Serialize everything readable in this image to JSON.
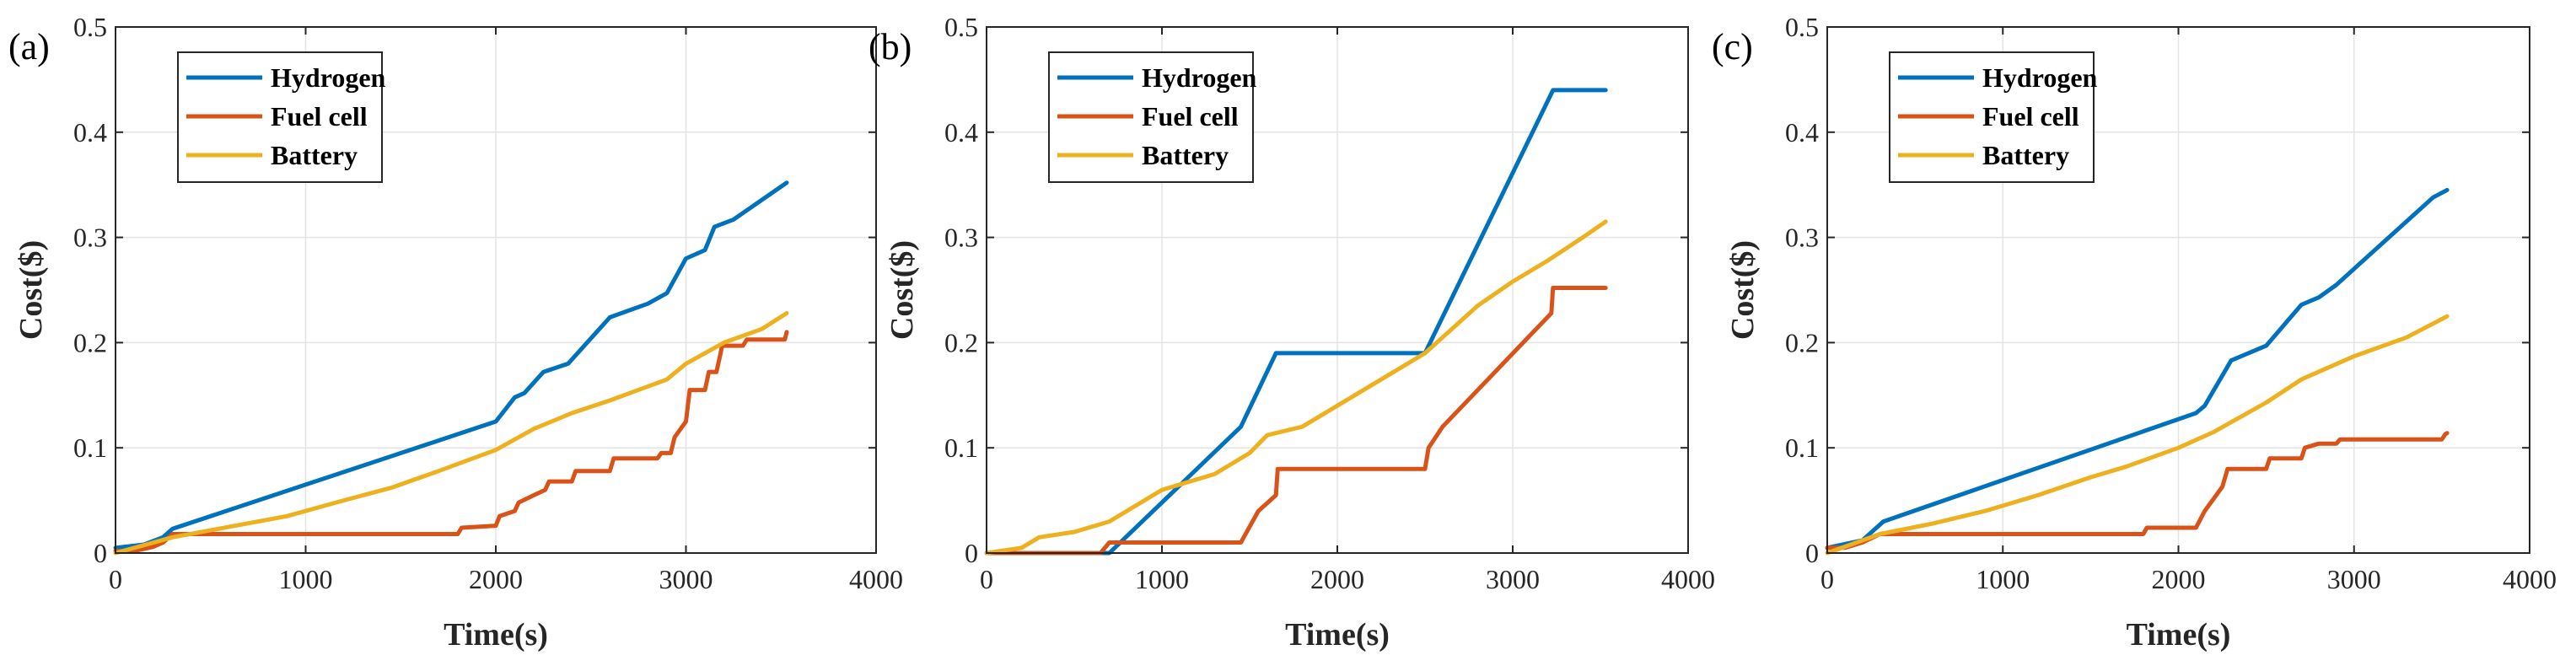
{
  "colors": {
    "hydrogen": "#0072BD",
    "fuel_cell": "#D95319",
    "battery": "#EDB120"
  },
  "chart_data": [
    {
      "type": "line",
      "panel_label": "(a)",
      "xlabel": "Time(s)",
      "ylabel": "Cost($)",
      "xlim": [
        0,
        4000
      ],
      "ylim": [
        0,
        0.5
      ],
      "xticks": [
        0,
        1000,
        2000,
        3000,
        4000
      ],
      "xtick_labels": [
        "0",
        "1000",
        "2000",
        "3000",
        "4000"
      ],
      "yticks": [
        0,
        0.1,
        0.2,
        0.3,
        0.4,
        0.5
      ],
      "ytick_labels": [
        "0",
        "0.1",
        "0.2",
        "0.3",
        "0.4",
        "0.5"
      ],
      "grid": true,
      "legend_position": "top-left",
      "series": [
        {
          "name": "Hydrogen",
          "color_key": "hydrogen",
          "points": [
            [
              0,
              0.005
            ],
            [
              150,
              0.008
            ],
            [
              250,
              0.015
            ],
            [
              300,
              0.023
            ],
            [
              1800,
              0.113
            ],
            [
              2000,
              0.125
            ],
            [
              2100,
              0.148
            ],
            [
              2150,
              0.152
            ],
            [
              2250,
              0.172
            ],
            [
              2380,
              0.18
            ],
            [
              2600,
              0.224
            ],
            [
              2800,
              0.237
            ],
            [
              2900,
              0.247
            ],
            [
              3000,
              0.28
            ],
            [
              3100,
              0.288
            ],
            [
              3150,
              0.31
            ],
            [
              3250,
              0.317
            ],
            [
              3530,
              0.352
            ]
          ]
        },
        {
          "name": "Fuel cell",
          "color_key": "fuel_cell",
          "points": [
            [
              0,
              0.002
            ],
            [
              100,
              0.002
            ],
            [
              200,
              0.006
            ],
            [
              250,
              0.01
            ],
            [
              300,
              0.018
            ],
            [
              1800,
              0.018
            ],
            [
              1820,
              0.024
            ],
            [
              2000,
              0.026
            ],
            [
              2020,
              0.035
            ],
            [
              2100,
              0.04
            ],
            [
              2120,
              0.048
            ],
            [
              2200,
              0.055
            ],
            [
              2260,
              0.06
            ],
            [
              2280,
              0.068
            ],
            [
              2400,
              0.068
            ],
            [
              2420,
              0.078
            ],
            [
              2600,
              0.078
            ],
            [
              2620,
              0.09
            ],
            [
              2850,
              0.09
            ],
            [
              2870,
              0.095
            ],
            [
              2920,
              0.095
            ],
            [
              2940,
              0.11
            ],
            [
              3000,
              0.125
            ],
            [
              3020,
              0.155
            ],
            [
              3100,
              0.155
            ],
            [
              3120,
              0.172
            ],
            [
              3160,
              0.172
            ],
            [
              3180,
              0.188
            ],
            [
              3190,
              0.197
            ],
            [
              3300,
              0.197
            ],
            [
              3320,
              0.203
            ],
            [
              3520,
              0.203
            ],
            [
              3530,
              0.21
            ]
          ]
        },
        {
          "name": "Battery",
          "color_key": "battery",
          "points": [
            [
              0,
              0
            ],
            [
              300,
              0.015
            ],
            [
              600,
              0.025
            ],
            [
              900,
              0.035
            ],
            [
              1200,
              0.05
            ],
            [
              1450,
              0.062
            ],
            [
              1700,
              0.078
            ],
            [
              2000,
              0.098
            ],
            [
              2200,
              0.118
            ],
            [
              2400,
              0.133
            ],
            [
              2600,
              0.145
            ],
            [
              2900,
              0.165
            ],
            [
              3000,
              0.18
            ],
            [
              3200,
              0.2
            ],
            [
              3400,
              0.213
            ],
            [
              3530,
              0.228
            ]
          ]
        }
      ]
    },
    {
      "type": "line",
      "panel_label": "(b)",
      "xlabel": "Time(s)",
      "ylabel": "Cost($)",
      "xlim": [
        0,
        4000
      ],
      "ylim": [
        0,
        0.5
      ],
      "xticks": [
        0,
        1000,
        2000,
        3000,
        4000
      ],
      "xtick_labels": [
        "0",
        "1000",
        "2000",
        "3000",
        "4000"
      ],
      "yticks": [
        0,
        0.1,
        0.2,
        0.3,
        0.4,
        0.5
      ],
      "ytick_labels": [
        "0",
        "0.1",
        "0.2",
        "0.3",
        "0.4",
        "0.5"
      ],
      "grid": true,
      "legend_position": "top-left",
      "series": [
        {
          "name": "Hydrogen",
          "color_key": "hydrogen",
          "points": [
            [
              0,
              0
            ],
            [
              700,
              0
            ],
            [
              1450,
              0.12
            ],
            [
              1650,
              0.19
            ],
            [
              2500,
              0.19
            ],
            [
              3230,
              0.44
            ],
            [
              3530,
              0.44
            ]
          ]
        },
        {
          "name": "Fuel cell",
          "color_key": "fuel_cell",
          "points": [
            [
              0,
              0
            ],
            [
              650,
              0
            ],
            [
              700,
              0.01
            ],
            [
              1450,
              0.01
            ],
            [
              1550,
              0.04
            ],
            [
              1650,
              0.055
            ],
            [
              1660,
              0.08
            ],
            [
              2500,
              0.08
            ],
            [
              2520,
              0.1
            ],
            [
              2600,
              0.12
            ],
            [
              3220,
              0.228
            ],
            [
              3230,
              0.252
            ],
            [
              3530,
              0.252
            ]
          ]
        },
        {
          "name": "Battery",
          "color_key": "battery",
          "points": [
            [
              0,
              0
            ],
            [
              200,
              0.005
            ],
            [
              300,
              0.015
            ],
            [
              500,
              0.02
            ],
            [
              700,
              0.03
            ],
            [
              1000,
              0.06
            ],
            [
              1300,
              0.075
            ],
            [
              1500,
              0.095
            ],
            [
              1600,
              0.112
            ],
            [
              1800,
              0.12
            ],
            [
              2200,
              0.16
            ],
            [
              2500,
              0.19
            ],
            [
              2600,
              0.205
            ],
            [
              2800,
              0.235
            ],
            [
              3000,
              0.258
            ],
            [
              3200,
              0.278
            ],
            [
              3400,
              0.3
            ],
            [
              3530,
              0.315
            ]
          ]
        }
      ]
    },
    {
      "type": "line",
      "panel_label": "(c)",
      "xlabel": "Time(s)",
      "ylabel": "Cost($)",
      "xlim": [
        0,
        4000
      ],
      "ylim": [
        0,
        0.5
      ],
      "xticks": [
        0,
        1000,
        2000,
        3000,
        4000
      ],
      "xtick_labels": [
        "0",
        "1000",
        "2000",
        "3000",
        "4000"
      ],
      "yticks": [
        0,
        0.1,
        0.2,
        0.3,
        0.4,
        0.5
      ],
      "ytick_labels": [
        "0",
        "0.1",
        "0.2",
        "0.3",
        "0.4",
        "0.5"
      ],
      "grid": true,
      "legend_position": "top-left",
      "series": [
        {
          "name": "Hydrogen",
          "color_key": "hydrogen",
          "points": [
            [
              0,
              0.005
            ],
            [
              200,
              0.012
            ],
            [
              320,
              0.03
            ],
            [
              2100,
              0.133
            ],
            [
              2150,
              0.14
            ],
            [
              2300,
              0.183
            ],
            [
              2500,
              0.197
            ],
            [
              2700,
              0.236
            ],
            [
              2800,
              0.243
            ],
            [
              2900,
              0.255
            ],
            [
              3450,
              0.338
            ],
            [
              3530,
              0.345
            ]
          ]
        },
        {
          "name": "Fuel cell",
          "color_key": "fuel_cell",
          "points": [
            [
              0,
              0.005
            ],
            [
              100,
              0.005
            ],
            [
              200,
              0.01
            ],
            [
              300,
              0.018
            ],
            [
              1800,
              0.018
            ],
            [
              1820,
              0.024
            ],
            [
              2100,
              0.024
            ],
            [
              2150,
              0.04
            ],
            [
              2250,
              0.063
            ],
            [
              2280,
              0.08
            ],
            [
              2500,
              0.08
            ],
            [
              2520,
              0.09
            ],
            [
              2700,
              0.09
            ],
            [
              2720,
              0.1
            ],
            [
              2800,
              0.104
            ],
            [
              2900,
              0.104
            ],
            [
              2920,
              0.108
            ],
            [
              3500,
              0.108
            ],
            [
              3520,
              0.113
            ],
            [
              3530,
              0.114
            ]
          ]
        },
        {
          "name": "Battery",
          "color_key": "battery",
          "points": [
            [
              0,
              0
            ],
            [
              300,
              0.018
            ],
            [
              600,
              0.028
            ],
            [
              900,
              0.04
            ],
            [
              1200,
              0.055
            ],
            [
              1500,
              0.072
            ],
            [
              1700,
              0.082
            ],
            [
              2000,
              0.1
            ],
            [
              2200,
              0.115
            ],
            [
              2500,
              0.143
            ],
            [
              2700,
              0.165
            ],
            [
              3000,
              0.187
            ],
            [
              3300,
              0.205
            ],
            [
              3530,
              0.225
            ]
          ]
        }
      ]
    }
  ]
}
